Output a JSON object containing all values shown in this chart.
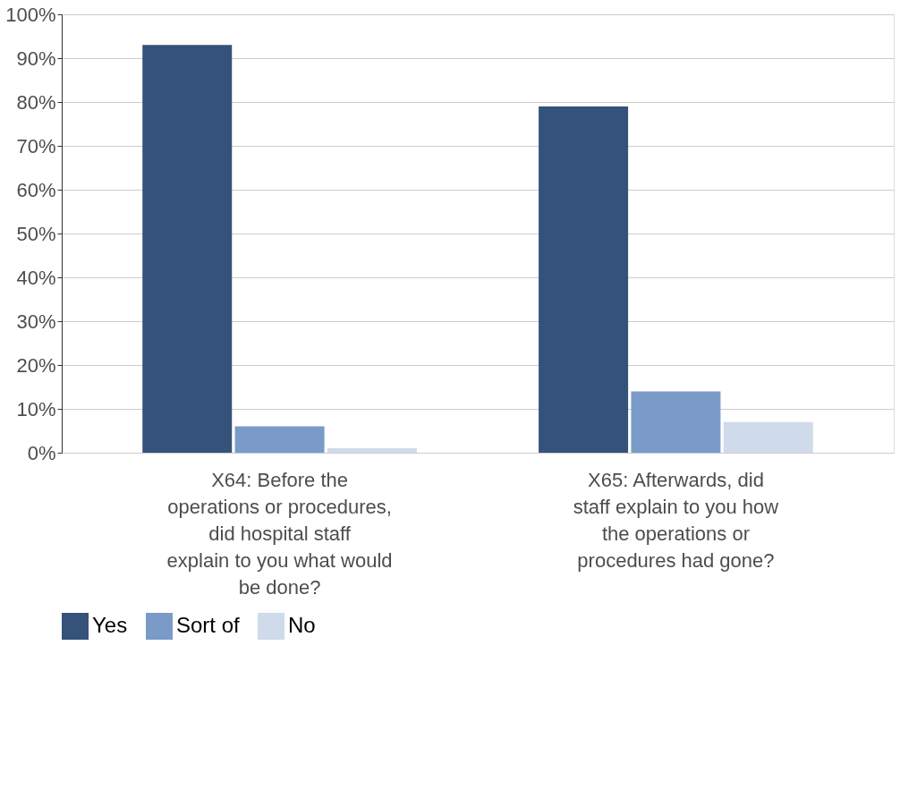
{
  "chart_data": {
    "type": "bar",
    "categories": [
      "X64: Before the operations or procedures, did hospital staff explain to you what would be done?",
      "X65: Afterwards, did staff explain to you how the operations or procedures had gone?"
    ],
    "series": [
      {
        "name": "Yes",
        "color": "#34527a",
        "values": [
          93,
          79
        ]
      },
      {
        "name": "Sort of",
        "color": "#7a9bc8",
        "values": [
          6,
          14
        ]
      },
      {
        "name": "No",
        "color": "#cfdaea",
        "values": [
          1,
          7
        ]
      }
    ],
    "ylim": [
      0,
      100
    ],
    "yticks": [
      {
        "value": 0,
        "label": "0%"
      },
      {
        "value": 10,
        "label": "10%"
      },
      {
        "value": 20,
        "label": "20%"
      },
      {
        "value": 30,
        "label": "30%"
      },
      {
        "value": 40,
        "label": "40%"
      },
      {
        "value": 50,
        "label": "50%"
      },
      {
        "value": 60,
        "label": "60%"
      },
      {
        "value": 70,
        "label": "70%"
      },
      {
        "value": 80,
        "label": "80%"
      },
      {
        "value": 90,
        "label": "90%"
      },
      {
        "value": 100,
        "label": "100%"
      }
    ],
    "grid": "y",
    "legend": "bottom"
  }
}
